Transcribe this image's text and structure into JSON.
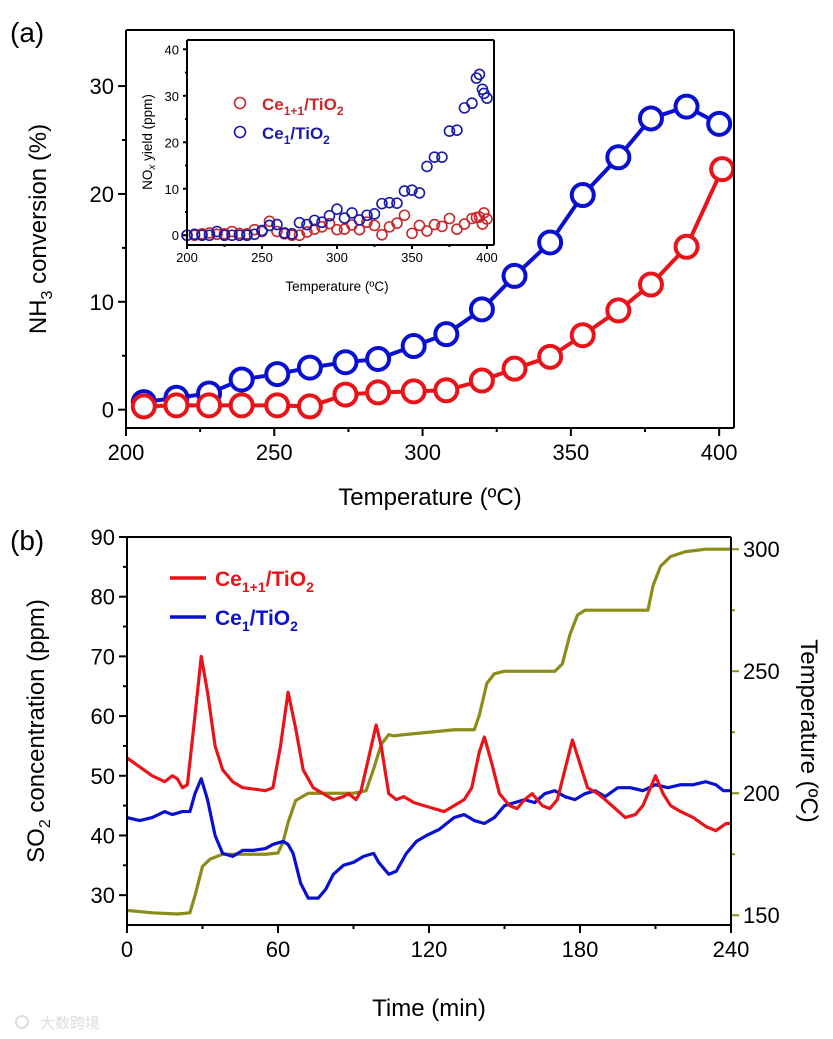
{
  "chart_data": [
    {
      "panel": "(a)",
      "type": "line",
      "xlabel": "Temperature (ºC)",
      "ylabel_parts": [
        "NH",
        "3",
        " conversion (%)"
      ],
      "xlim": [
        200,
        405
      ],
      "ylim": [
        -1.7,
        35.2
      ],
      "xticks": [
        200,
        250,
        300,
        350,
        400
      ],
      "yticks": [
        0,
        10,
        20,
        30
      ],
      "grid": false,
      "legend_placement": "inset top-left",
      "series": [
        {
          "name": "Ce1/TiO2",
          "legend_parts": [
            "Ce",
            "1",
            "/TiO",
            "2"
          ],
          "color": "#0a10d0",
          "x": [
            206,
            217,
            228,
            239,
            251,
            262,
            274,
            285,
            297,
            308,
            320,
            331,
            343,
            354,
            366,
            377,
            389,
            400
          ],
          "y": [
            0.7,
            1.1,
            1.5,
            2.8,
            3.3,
            3.9,
            4.4,
            4.7,
            5.9,
            7.0,
            9.3,
            12.4,
            15.5,
            19.9,
            23.4,
            27.0,
            28.1,
            26.5
          ]
        },
        {
          "name": "Ce1+1/TiO2",
          "legend_parts": [
            "Ce",
            "1+1",
            "/TiO",
            "2"
          ],
          "color": "#e8141a",
          "x": [
            206,
            217,
            228,
            239,
            251,
            262,
            274,
            285,
            297,
            308,
            320,
            331,
            343,
            354,
            366,
            377,
            389,
            401
          ],
          "y": [
            0.3,
            0.4,
            0.4,
            0.4,
            0.4,
            0.3,
            1.4,
            1.6,
            1.7,
            1.8,
            2.7,
            3.8,
            4.9,
            6.9,
            9.2,
            11.6,
            15.1,
            22.3
          ]
        }
      ],
      "inset": {
        "type": "scatter",
        "xlabel": "Temperature (ºC)",
        "ylabel_parts": [
          "NO",
          "x",
          " yield (ppm)"
        ],
        "xlim": [
          200,
          404.7
        ],
        "ylim": [
          -2.1,
          42
        ],
        "xticks": [
          200,
          250,
          300,
          350,
          400
        ],
        "yticks": [
          0,
          10,
          20,
          30,
          40
        ],
        "series": [
          {
            "name": "Ce1+1/TiO2",
            "legend_parts": [
              "Ce",
              "1+1",
              "/TiO",
              "2"
            ],
            "color": "#c8282a",
            "x": [
              200,
              205,
              210,
              215,
              220,
              225,
              230,
              235,
              240,
              245,
              250,
              255,
              260,
              265,
              270,
              275,
              280,
              285,
              290,
              295,
              300,
              305,
              310,
              315,
              320,
              325,
              330,
              335,
              340,
              345,
              350,
              355,
              360,
              365,
              370,
              375,
              380,
              385,
              390,
              393,
              395,
              397,
              398,
              400
            ],
            "y": [
              0,
              0,
              0.3,
              0.5,
              0.2,
              0.3,
              0.8,
              0.4,
              0.3,
              1.2,
              0.8,
              3.0,
              0.8,
              0.3,
              0,
              0,
              0.7,
              1.3,
              1.8,
              2.5,
              1.2,
              1.3,
              2.2,
              1.2,
              2.8,
              2.1,
              0.1,
              1.8,
              2.6,
              4.3,
              0.4,
              2.1,
              0.9,
              2.3,
              1.9,
              3.6,
              1.3,
              2.4,
              3.6,
              3.8,
              3.9,
              2.4,
              4.8,
              3.5
            ]
          },
          {
            "name": "Ce1/TiO2",
            "legend_parts": [
              "Ce",
              "1",
              "/TiO",
              "2"
            ],
            "color": "#1a1aa8",
            "x": [
              200,
              205,
              210,
              215,
              220,
              225,
              230,
              235,
              240,
              245,
              250,
              255,
              260,
              265,
              270,
              275,
              280,
              285,
              290,
              295,
              300,
              305,
              310,
              315,
              320,
              325,
              330,
              335,
              340,
              345,
              350,
              355,
              360,
              365,
              370,
              375,
              380,
              385,
              390,
              393,
              395,
              397,
              398,
              400
            ],
            "y": [
              0,
              0.2,
              0,
              0,
              0.8,
              0,
              0,
              0,
              0,
              0.2,
              1.0,
              2.1,
              2.3,
              0.5,
              0.3,
              2.7,
              2.3,
              3.2,
              2.8,
              4.2,
              5.6,
              3.7,
              4.8,
              3.3,
              4.3,
              4.6,
              6.8,
              7.0,
              6.9,
              9.5,
              9.7,
              9.1,
              14.8,
              16.8,
              16.8,
              22.4,
              22.6,
              27.4,
              28.4,
              33.8,
              34.6,
              31.4,
              30.5,
              29.5
            ]
          }
        ]
      }
    },
    {
      "panel": "(b)",
      "type": "line",
      "xlabel": "Time (min)",
      "ylabel_parts": [
        "SO",
        "2",
        " concentration (ppm)"
      ],
      "y2label": "Temperature (ºC)",
      "xlim": [
        0,
        240
      ],
      "ylim": [
        25,
        90
      ],
      "y2lim": [
        146,
        305
      ],
      "xticks": [
        0,
        60,
        120,
        180,
        240
      ],
      "yticks": [
        30,
        40,
        50,
        60,
        70,
        80,
        90
      ],
      "y2ticks": [
        150,
        200,
        250,
        300
      ],
      "grid": false,
      "legend_placement": "top-left",
      "series": [
        {
          "name": "Ce1+1/TiO2",
          "legend_parts": [
            "Ce",
            "1+1",
            "/TiO",
            "2"
          ],
          "color": "#e8141a",
          "axis": "left",
          "x": [
            0,
            5,
            10,
            15,
            18,
            20,
            22,
            24,
            27,
            29.5,
            32,
            35,
            38,
            42,
            46,
            50,
            55,
            58,
            61,
            64,
            67,
            70,
            74,
            78,
            82,
            86,
            88,
            91,
            93,
            96,
            99,
            101,
            104,
            107,
            110,
            114,
            118,
            122,
            126,
            130,
            134,
            137,
            140,
            142,
            145,
            148,
            152,
            155,
            158,
            161,
            165,
            168,
            171,
            174,
            177,
            180,
            183,
            187,
            190,
            194,
            198,
            202,
            205,
            208,
            210,
            213,
            216,
            220,
            225,
            230,
            234,
            238,
            240
          ],
          "y": [
            53,
            51.5,
            50,
            49,
            50,
            49.5,
            48,
            48.5,
            60,
            70,
            64,
            55,
            51,
            49,
            48,
            47.8,
            47.5,
            48,
            55,
            64,
            58,
            51,
            48,
            47,
            46,
            46.5,
            47,
            46,
            47.5,
            53,
            58.5,
            55,
            47,
            46,
            46.5,
            45.5,
            45,
            44.5,
            44,
            45,
            46,
            48,
            54,
            56.5,
            52,
            47,
            45,
            44.5,
            46,
            47,
            45,
            44.5,
            46,
            51,
            56,
            52,
            48,
            47,
            46,
            44.5,
            43,
            43.5,
            45,
            48,
            50,
            47,
            45,
            44,
            43,
            41.5,
            40.8,
            42,
            42
          ]
        },
        {
          "name": "Ce1/TiO2",
          "legend_parts": [
            "Ce",
            "1",
            "/TiO",
            "2"
          ],
          "color": "#0a10d0",
          "axis": "left",
          "x": [
            0,
            5,
            10,
            15,
            18,
            22,
            25,
            27,
            29.5,
            32,
            35,
            38,
            42,
            46,
            50,
            55,
            58,
            62,
            64,
            66,
            69,
            72,
            76,
            79,
            82,
            86,
            90,
            94,
            98,
            100,
            104,
            107,
            111,
            115,
            119,
            124,
            130,
            134,
            138,
            142,
            146,
            150,
            154,
            158,
            162,
            166,
            170,
            174,
            178,
            182,
            186,
            190,
            195,
            200,
            205,
            210,
            215,
            220,
            225,
            230,
            234,
            237,
            240
          ],
          "y": [
            43,
            42.5,
            43,
            44,
            43.5,
            44,
            44,
            47,
            49.5,
            46,
            40,
            37,
            36.5,
            37.5,
            37.5,
            37.8,
            38.5,
            39,
            38.5,
            37,
            32,
            29.5,
            29.5,
            31,
            33.5,
            35,
            35.5,
            36.5,
            37,
            35.5,
            33.5,
            34,
            37,
            39,
            40,
            41,
            43,
            43.5,
            42.5,
            42,
            43,
            45,
            45.5,
            46,
            45.5,
            47,
            47.5,
            46.5,
            46,
            47,
            47.5,
            46.5,
            48,
            48,
            47.5,
            48.5,
            48,
            48.5,
            48.5,
            49,
            48.5,
            47.5,
            47.5
          ]
        },
        {
          "name": "Temperature",
          "color": "#8c8c1a",
          "axis": "right",
          "x": [
            0,
            10,
            20,
            25,
            27,
            30,
            33,
            38,
            45,
            55,
            60,
            62,
            64,
            67,
            72,
            80,
            90,
            95,
            98,
            101,
            104,
            106,
            110,
            120,
            130,
            138,
            140,
            143,
            146,
            150,
            160,
            170,
            173,
            176,
            179,
            182,
            190,
            200,
            207,
            209,
            212,
            216,
            222,
            230,
            240
          ],
          "y": [
            152,
            151,
            150.5,
            151,
            158,
            170,
            173,
            175,
            175,
            175,
            175.5,
            180,
            188,
            197,
            200,
            200,
            200,
            201,
            210,
            220,
            224,
            223.5,
            224,
            225,
            226,
            226,
            232,
            245,
            249,
            250,
            250,
            250,
            253,
            265,
            273,
            275,
            275,
            275,
            275,
            285,
            293,
            297,
            299,
            300,
            300
          ]
        }
      ]
    }
  ],
  "watermark": "大数跨境"
}
